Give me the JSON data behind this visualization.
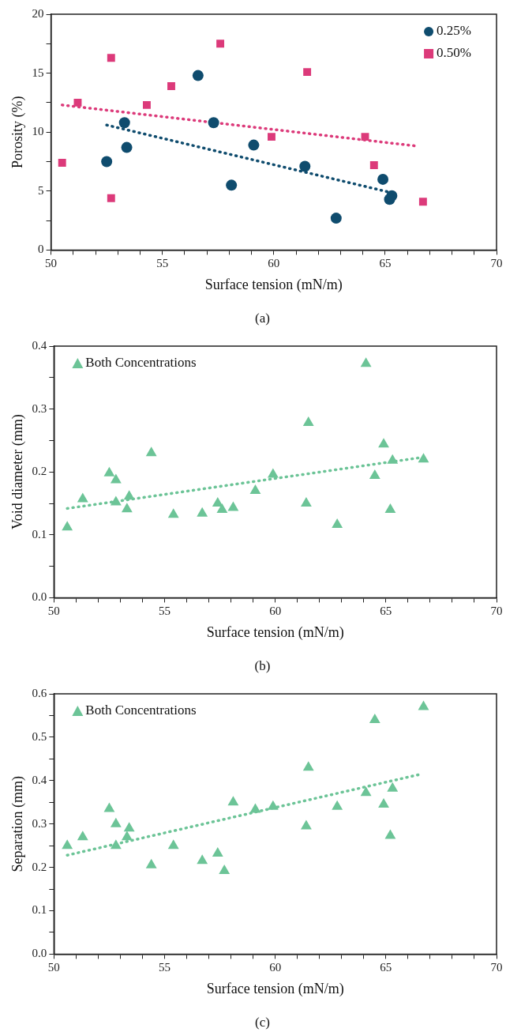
{
  "chart_data": [
    {
      "type": "scatter",
      "xlabel": "Surface tension (mN/m)",
      "ylabel": "Porosity (%)",
      "annotations": [
        "(a)"
      ],
      "xlim": [
        50,
        70
      ],
      "xticks": [
        50,
        {
          "value": 51,
          "label": null
        },
        {
          "value": 52,
          "label": null
        },
        {
          "value": 53,
          "label": null
        },
        {
          "value": 54,
          "label": null
        },
        55,
        {
          "value": 56,
          "label": null
        },
        {
          "value": 57,
          "label": null
        },
        {
          "value": 58,
          "label": null
        },
        {
          "value": 59,
          "label": null
        },
        60,
        {
          "value": 61,
          "label": null
        },
        {
          "value": 62,
          "label": null
        },
        {
          "value": 63,
          "label": null
        },
        {
          "value": 64,
          "label": null
        },
        65,
        {
          "value": 66,
          "label": null
        },
        {
          "value": 67,
          "label": null
        },
        {
          "value": 68,
          "label": null
        },
        {
          "value": 69,
          "label": null
        },
        70
      ],
      "ylim": [
        0,
        20
      ],
      "yticks": [
        0,
        {
          "value": 2.5,
          "label": null
        },
        5,
        {
          "value": 7.5,
          "label": null
        },
        10,
        {
          "value": 12.5,
          "label": null
        },
        15,
        {
          "value": 17.5,
          "label": null
        },
        20
      ],
      "grid": false,
      "legend": "top right",
      "series": [
        {
          "name": "0.25%",
          "color": "#0f4c6e",
          "marker": "circle",
          "x": [
            52.5,
            53.3,
            53.4,
            56.6,
            57.3,
            58.1,
            59.1,
            61.4,
            62.8,
            64.9,
            65.3,
            65.2
          ],
          "values": [
            7.5,
            10.8,
            8.7,
            14.8,
            10.8,
            5.5,
            8.9,
            7.1,
            2.7,
            6.0,
            4.6,
            4.3
          ]
        },
        {
          "name": "0.50%",
          "color": "#dc3a7a",
          "marker": "square",
          "x": [
            50.5,
            51.2,
            52.7,
            52.7,
            54.3,
            55.4,
            57.6,
            59.9,
            61.5,
            64.1,
            64.5,
            66.7
          ],
          "values": [
            7.4,
            12.5,
            16.3,
            4.4,
            12.3,
            13.9,
            17.5,
            9.6,
            15.1,
            9.6,
            7.2,
            4.1
          ]
        },
        {
          "type": "line",
          "color": "#0f4c6e",
          "line_style": "dotted",
          "marker": "none",
          "x": [
            52.5,
            65.2
          ],
          "values": [
            10.6,
            4.9
          ]
        },
        {
          "type": "line",
          "color": "#dc3a7a",
          "line_style": "dotted",
          "marker": "none",
          "x": [
            50.5,
            66.5
          ],
          "values": [
            12.3,
            8.8
          ]
        }
      ]
    },
    {
      "type": "scatter",
      "xlabel": "Surface tension (mN/m)",
      "ylabel": "Void diameter (mm)",
      "annotations": [
        "(b)"
      ],
      "xlim": [
        50,
        70
      ],
      "xticks": [
        50,
        {
          "value": 51,
          "label": null
        },
        {
          "value": 52,
          "label": null
        },
        {
          "value": 53,
          "label": null
        },
        {
          "value": 54,
          "label": null
        },
        55,
        {
          "value": 56,
          "label": null
        },
        {
          "value": 57,
          "label": null
        },
        {
          "value": 58,
          "label": null
        },
        {
          "value": 59,
          "label": null
        },
        60,
        {
          "value": 61,
          "label": null
        },
        {
          "value": 62,
          "label": null
        },
        {
          "value": 63,
          "label": null
        },
        {
          "value": 64,
          "label": null
        },
        65,
        {
          "value": 66,
          "label": null
        },
        {
          "value": 67,
          "label": null
        },
        {
          "value": 68,
          "label": null
        },
        {
          "value": 69,
          "label": null
        },
        70
      ],
      "ylim": [
        0,
        0.4
      ],
      "yticks": [
        {
          "value": 0,
          "label": "0.0"
        },
        {
          "value": 0.05,
          "label": null
        },
        0.1,
        {
          "value": 0.15,
          "label": null
        },
        0.2,
        {
          "value": 0.25,
          "label": null
        },
        0.3,
        {
          "value": 0.35,
          "label": null
        },
        0.4
      ],
      "grid": false,
      "legend": "top left",
      "series": [
        {
          "name": "Both Concentrations",
          "color": "#6cc497",
          "marker": "triangle",
          "x": [
            50.6,
            51.3,
            52.5,
            52.8,
            52.8,
            53.3,
            53.4,
            54.4,
            55.4,
            56.7,
            57.4,
            57.6,
            58.1,
            59.1,
            59.9,
            61.4,
            61.5,
            62.8,
            64.1,
            64.5,
            64.9,
            65.2,
            65.3,
            66.7
          ],
          "values": [
            0.112,
            0.157,
            0.198,
            0.187,
            0.152,
            0.141,
            0.161,
            0.23,
            0.132,
            0.134,
            0.15,
            0.14,
            0.143,
            0.17,
            0.196,
            0.15,
            0.278,
            0.116,
            0.372,
            0.194,
            0.244,
            0.14,
            0.218,
            0.22
          ]
        },
        {
          "type": "line",
          "color": "#6cc497",
          "line_style": "dotted",
          "marker": "none",
          "x": [
            50.6,
            66.6
          ],
          "values": [
            0.142,
            0.223
          ]
        }
      ]
    },
    {
      "type": "scatter",
      "xlabel": "Surface tension (mN/m)",
      "ylabel": "Separation (mm)",
      "annotations": [
        "(c)"
      ],
      "xlim": [
        50,
        70
      ],
      "xticks": [
        50,
        {
          "value": 51,
          "label": null
        },
        {
          "value": 52,
          "label": null
        },
        {
          "value": 53,
          "label": null
        },
        {
          "value": 54,
          "label": null
        },
        55,
        {
          "value": 56,
          "label": null
        },
        {
          "value": 57,
          "label": null
        },
        {
          "value": 58,
          "label": null
        },
        {
          "value": 59,
          "label": null
        },
        60,
        {
          "value": 61,
          "label": null
        },
        {
          "value": 62,
          "label": null
        },
        {
          "value": 63,
          "label": null
        },
        {
          "value": 64,
          "label": null
        },
        65,
        {
          "value": 66,
          "label": null
        },
        {
          "value": 67,
          "label": null
        },
        {
          "value": 68,
          "label": null
        },
        {
          "value": 69,
          "label": null
        },
        70
      ],
      "ylim": [
        0,
        0.6
      ],
      "yticks": [
        {
          "value": 0,
          "label": "0.0"
        },
        {
          "value": 0.05,
          "label": null
        },
        0.1,
        {
          "value": 0.15,
          "label": null
        },
        0.2,
        {
          "value": 0.25,
          "label": null
        },
        0.3,
        {
          "value": 0.35,
          "label": null
        },
        0.4,
        {
          "value": 0.45,
          "label": null
        },
        0.5,
        {
          "value": 0.55,
          "label": null
        },
        0.6
      ],
      "grid": false,
      "legend": "top left",
      "series": [
        {
          "name": "Both Concentrations",
          "color": "#6cc497",
          "marker": "triangle",
          "x": [
            50.6,
            51.3,
            52.5,
            52.8,
            52.8,
            53.3,
            53.4,
            54.4,
            55.4,
            56.7,
            57.4,
            57.7,
            58.1,
            59.1,
            59.9,
            61.4,
            61.5,
            62.8,
            64.1,
            64.5,
            64.9,
            65.2,
            65.3,
            66.7
          ],
          "values": [
            0.25,
            0.27,
            0.335,
            0.3,
            0.25,
            0.27,
            0.29,
            0.205,
            0.25,
            0.215,
            0.232,
            0.192,
            0.35,
            0.333,
            0.34,
            0.295,
            0.43,
            0.34,
            0.372,
            0.54,
            0.345,
            0.273,
            0.382,
            0.57
          ]
        },
        {
          "type": "line",
          "color": "#6cc497",
          "line_style": "dotted",
          "marker": "none",
          "x": [
            50.6,
            66.6
          ],
          "values": [
            0.228,
            0.415
          ]
        }
      ]
    }
  ]
}
